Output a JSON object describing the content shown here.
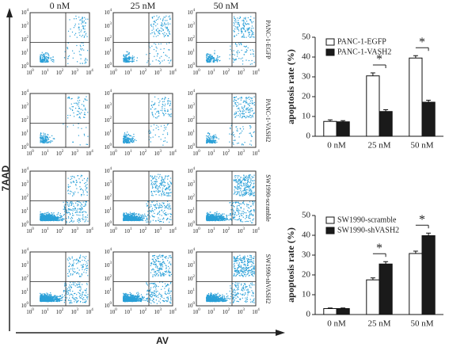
{
  "panels": {
    "columns": [
      "0 nM",
      "25 nM",
      "50 nM"
    ],
    "rows": [
      "PANC-1-EGFP",
      "PANC-1-VASH2",
      "SW1990-scramble",
      "SW1990-shVASH2"
    ],
    "tick_base": "10",
    "tick_exponents": [
      0,
      1,
      2,
      3,
      4
    ],
    "y_axis_label": "7AAD",
    "x_axis_label": "AV"
  },
  "chart_data": [
    {
      "type": "bar",
      "ylabel": "apoptosis rate (%)",
      "categories": [
        "0 nM",
        "25 nM",
        "50 nM"
      ],
      "ylim": [
        0,
        50
      ],
      "yticks": [
        0,
        10,
        20,
        30,
        40,
        50
      ],
      "legend": "upper left",
      "series": [
        {
          "name": "PANC-1-EGFP",
          "color": "#ffffff",
          "values": [
            7.5,
            30.5,
            39.5
          ],
          "errors": [
            0.8,
            1.5,
            1.2
          ]
        },
        {
          "name": "PANC-1-VASH2",
          "color": "#1a1a1a",
          "values": [
            7.3,
            12.5,
            17.2
          ],
          "errors": [
            0.6,
            0.9,
            1.0
          ]
        }
      ],
      "annotations": [
        {
          "text": "*",
          "category": 1
        },
        {
          "text": "*",
          "category": 2
        }
      ]
    },
    {
      "type": "bar",
      "ylabel": "apoptosis rate (%)",
      "categories": [
        "0 nM",
        "25 nM",
        "50 nM"
      ],
      "ylim": [
        0,
        50
      ],
      "yticks": [
        0,
        10,
        20,
        30,
        40,
        50
      ],
      "legend": "upper left",
      "series": [
        {
          "name": "SW1990-scramble",
          "color": "#ffffff",
          "values": [
            3,
            17.5,
            30.8
          ],
          "errors": [
            0.3,
            1.0,
            1.2
          ]
        },
        {
          "name": "SW1990-shVASH2",
          "color": "#1a1a1a",
          "values": [
            3,
            25.5,
            39.8
          ],
          "errors": [
            0.3,
            1.2,
            1.3
          ]
        }
      ],
      "annotations": [
        {
          "text": "*",
          "category": 1
        },
        {
          "text": "*",
          "category": 2
        }
      ]
    }
  ]
}
